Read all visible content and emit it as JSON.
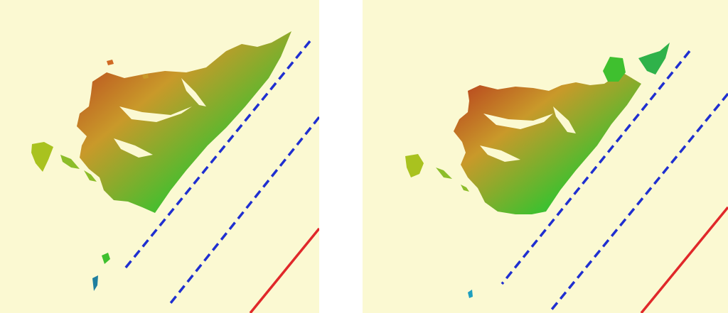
{
  "colors": {
    "background": "#fbf9d2",
    "separator": "#ffffff",
    "dashed_line": "#1f2fd0",
    "solid_line": "#e0282a",
    "terrain_high": "#b5321c",
    "terrain_mid": "#c9992a",
    "terrain_low": "#3fc02f",
    "terrain_coast": "#1f9fbf"
  },
  "panels": [
    {
      "id": "left",
      "legend": "dashed-lines-and-solid-line"
    },
    {
      "id": "right",
      "legend": "dashed-lines-and-solid-line"
    }
  ]
}
